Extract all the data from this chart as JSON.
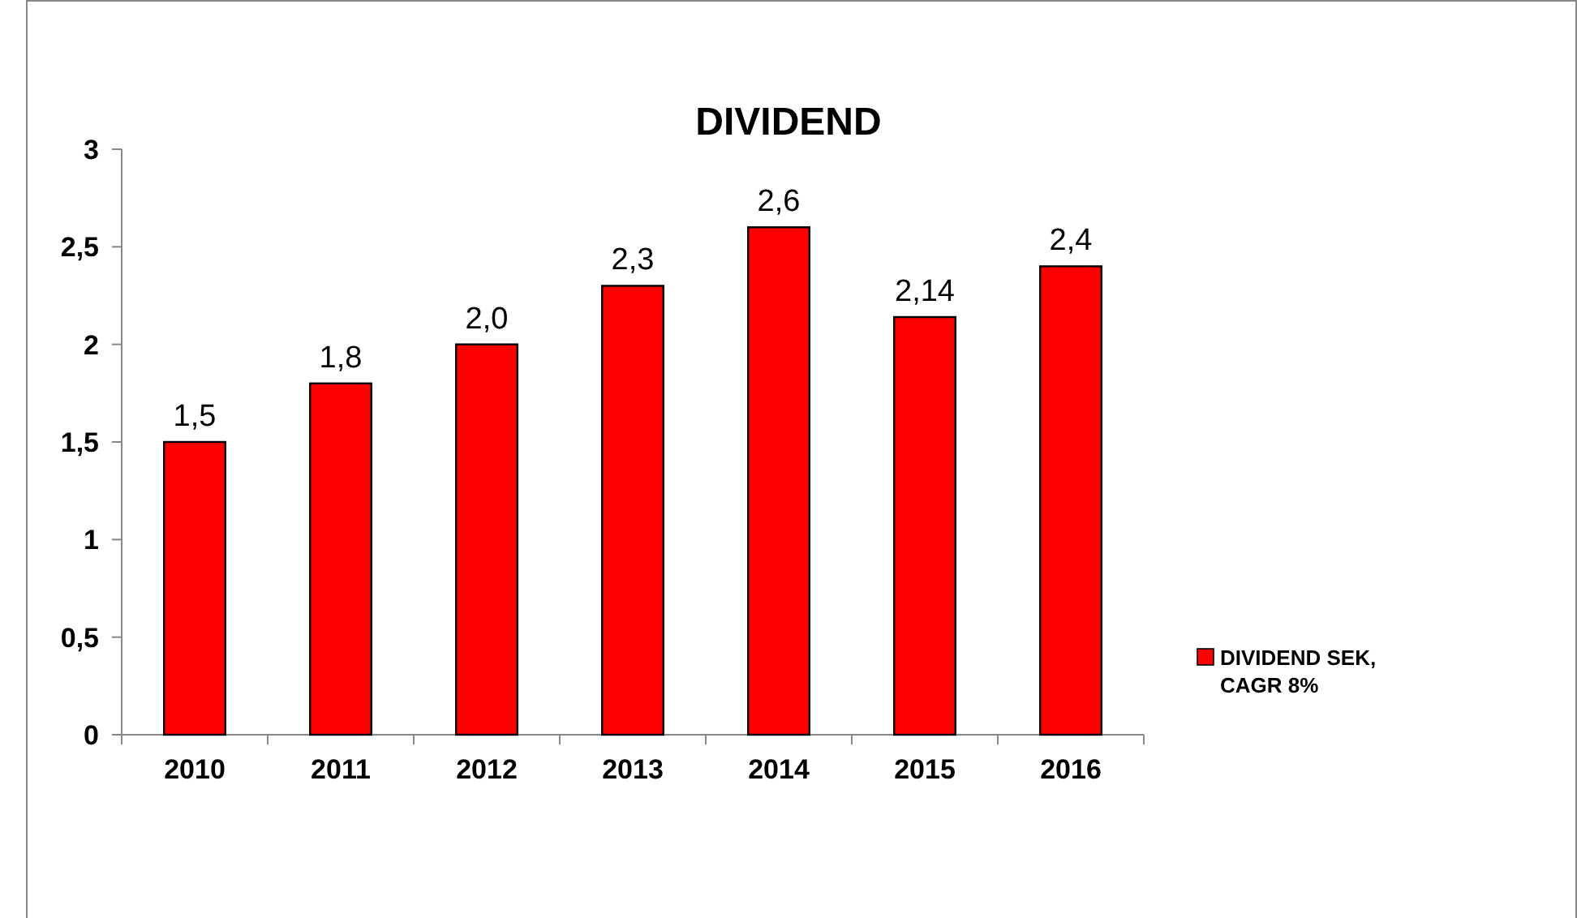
{
  "chart_data": {
    "type": "bar",
    "title": "DIVIDEND",
    "categories": [
      "2010",
      "2011",
      "2012",
      "2013",
      "2014",
      "2015",
      "2016"
    ],
    "series": [
      {
        "name": "DIVIDEND SEK, CAGR 8%",
        "color": "#ff0000",
        "values": [
          1.5,
          1.8,
          2.0,
          2.3,
          2.6,
          2.14,
          2.4
        ],
        "value_labels": [
          "1,5",
          "1,8",
          "2,0",
          "2,3",
          "2,6",
          "2,14",
          "2,4"
        ]
      }
    ],
    "ylim": [
      0,
      3
    ],
    "yticks": [
      0,
      {
        "value": 0.5,
        "label": "0,5"
      },
      1,
      {
        "value": 1.5,
        "label": "1,5"
      },
      2,
      {
        "value": 2.5,
        "label": "2,5"
      },
      3
    ],
    "grid": false,
    "legend": "right"
  }
}
